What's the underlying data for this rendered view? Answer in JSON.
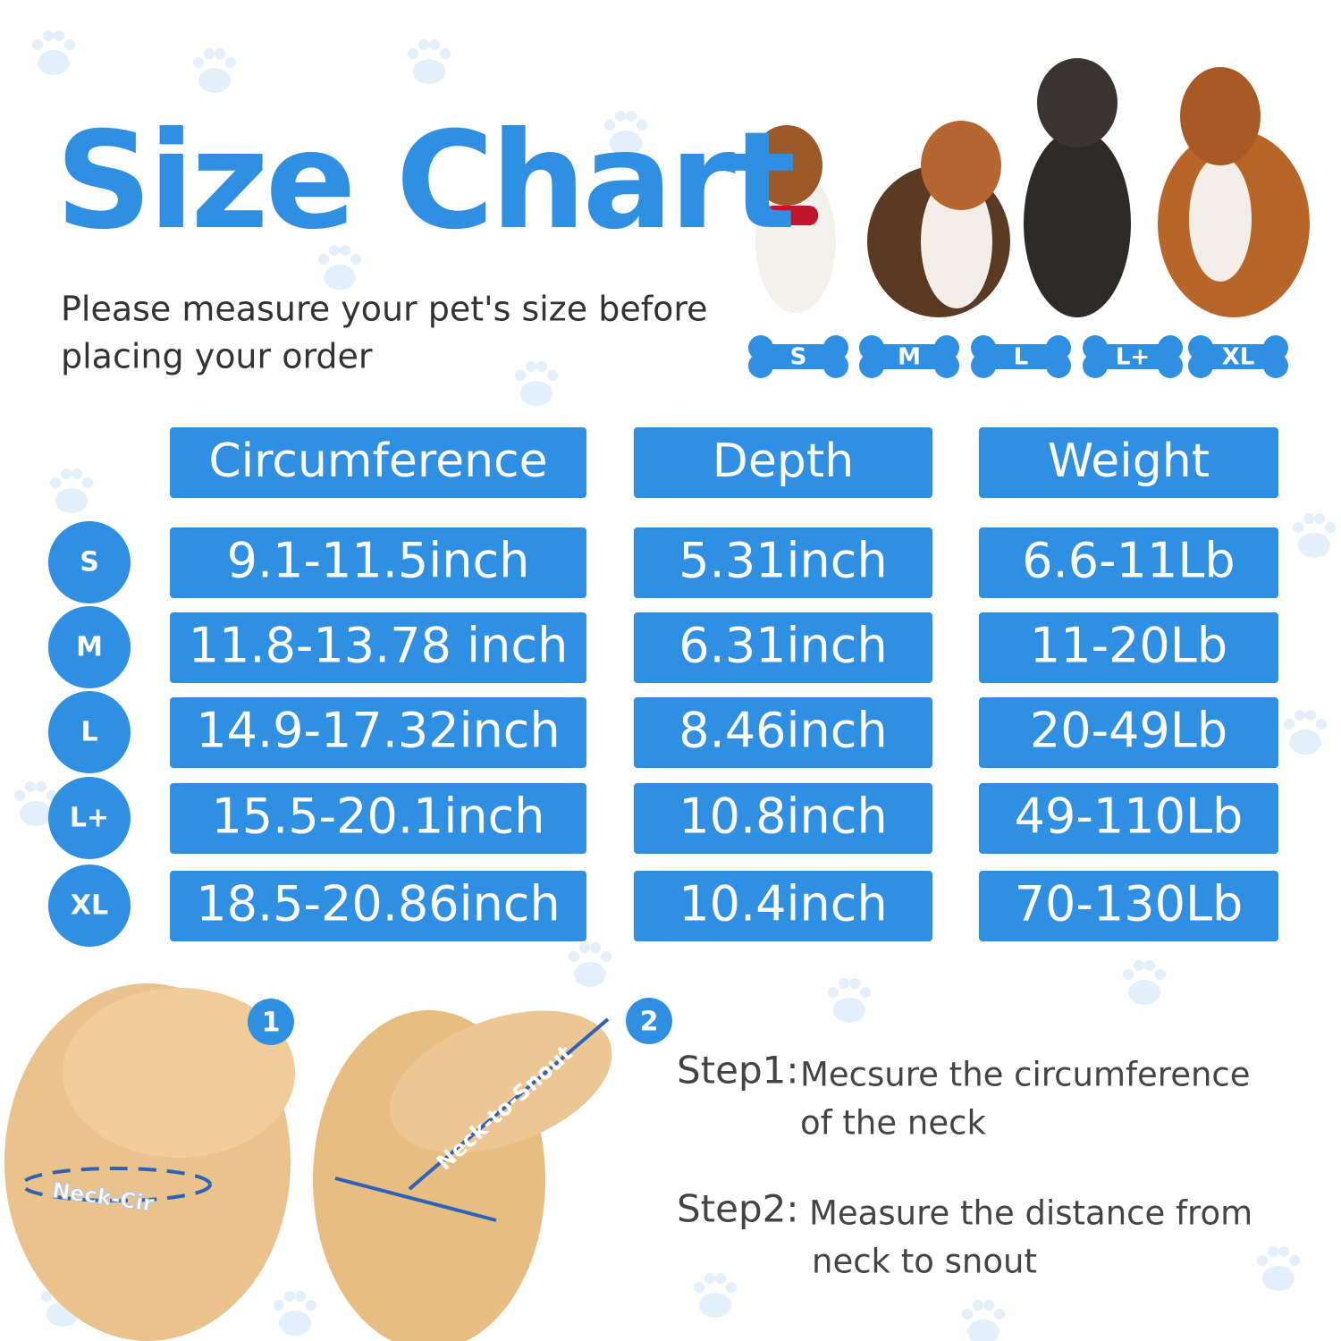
{
  "header": {
    "title": "Size Chart",
    "subtitle": [
      "Please measure your pet's size before",
      "placing your order"
    ]
  },
  "sizes": [
    "S",
    "M",
    "L",
    "L+",
    "XL"
  ],
  "table": {
    "columns": [
      "Circumference",
      "Depth",
      "Weight"
    ],
    "rows": [
      {
        "size": "S",
        "cells": [
          "9.1-11.5inch",
          "5.31inch",
          "6.6-11Lb"
        ]
      },
      {
        "size": "M",
        "cells": [
          "11.8-13.78 inch",
          "6.31inch",
          "11-20Lb"
        ]
      },
      {
        "size": "L",
        "cells": [
          "14.9-17.32inch",
          "8.46inch",
          "20-49Lb"
        ]
      },
      {
        "size": "L+",
        "cells": [
          "15.5-20.1inch",
          "10.8inch",
          "49-110Lb"
        ]
      },
      {
        "size": "XL",
        "cells": [
          "18.5-20.86inch",
          "10.4inch",
          "70-130Lb"
        ]
      }
    ]
  },
  "annotations": [
    "Neck-Cir",
    "Neck-to-Snout"
  ],
  "steps": [
    {
      "number": "1",
      "label": "Step1:",
      "text": [
        "Mecsure the circumference",
        "of the neck"
      ]
    },
    {
      "number": "2",
      "label": "Step2:",
      "text": [
        "Measure the distance from",
        "neck to snout"
      ]
    }
  ]
}
